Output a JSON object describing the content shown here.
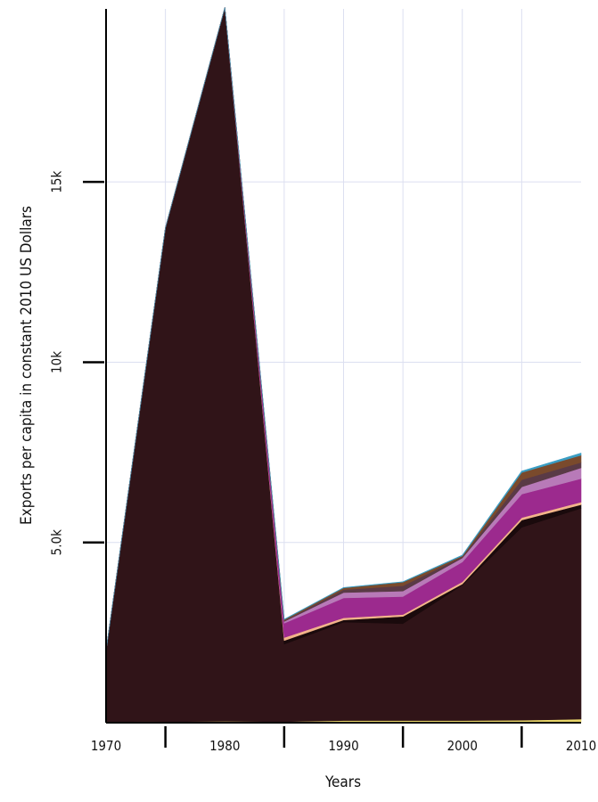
{
  "chart_data": {
    "type": "area",
    "stacked": true,
    "xlabel": "Years",
    "ylabel": "Exports per capita in constant 2010 US Dollars",
    "xlim": [
      1970,
      2010
    ],
    "ylim": [
      0,
      19800
    ],
    "x_ticks": [
      1970,
      1975,
      1980,
      1985,
      1990,
      1995,
      2000,
      2005,
      2010
    ],
    "x_tick_labels": [
      "1970",
      "",
      "1980",
      "",
      "1990",
      "",
      "2000",
      "",
      "2010"
    ],
    "y_ticks": [
      5000,
      10000,
      15000
    ],
    "y_tick_labels": [
      "5.0k",
      "10k",
      "15k"
    ],
    "grid": true,
    "legend": "none",
    "x": [
      1970,
      1975,
      1980,
      1985,
      1990,
      1995,
      2000,
      2005,
      2010
    ],
    "series": [
      {
        "color": "#e8d66a",
        "values": [
          20,
          30,
          40,
          30,
          60,
          60,
          60,
          70,
          100
        ]
      },
      {
        "color": "#301418",
        "values": [
          1980,
          13700,
          19800,
          2150,
          2730,
          2690,
          3760,
          5350,
          5850
        ]
      },
      {
        "color": "#1a0a0c",
        "values": [
          0,
          0,
          0,
          100,
          60,
          200,
          30,
          200,
          100
        ]
      },
      {
        "color": "#f2b48a",
        "values": [
          0,
          0,
          0,
          80,
          60,
          50,
          60,
          70,
          70
        ]
      },
      {
        "color": "#9c2a8e",
        "values": [
          0,
          0,
          0,
          400,
          550,
          500,
          550,
          650,
          650
        ]
      },
      {
        "color": "#b87ab8",
        "values": [
          0,
          0,
          0,
          50,
          150,
          150,
          110,
          200,
          300
        ]
      },
      {
        "color": "#5a3a46",
        "values": [
          0,
          0,
          0,
          20,
          80,
          150,
          30,
          200,
          150
        ]
      },
      {
        "color": "#7a4a2c",
        "values": [
          0,
          0,
          0,
          30,
          50,
          100,
          30,
          200,
          200
        ]
      },
      {
        "color": "#3a9ec4",
        "values": [
          0,
          0,
          0,
          10,
          10,
          10,
          20,
          40,
          60
        ]
      }
    ]
  }
}
